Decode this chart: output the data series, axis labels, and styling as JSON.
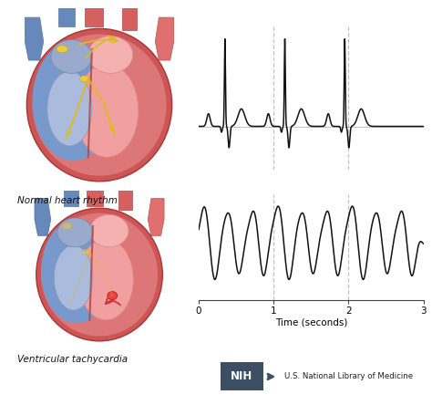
{
  "fig_width": 4.74,
  "fig_height": 4.44,
  "dpi": 100,
  "bg_color": "#ffffff",
  "ecg_color": "#111111",
  "dashed_color": "#bbbbbb",
  "axis_color": "#444444",
  "label_text": "Time (seconds)",
  "label_fontsize": 7.5,
  "tick_fontsize": 7.5,
  "x_ticks": [
    0,
    1,
    2,
    3
  ],
  "x_lim": [
    0,
    3
  ],
  "dashed_lines": [
    1,
    2
  ],
  "normal_label": "Normal heart rhythm",
  "tachy_label": "Ventricular tachycardia",
  "nih_label": "U.S. National Library of Medicine",
  "nih_bg": "#3d4f63",
  "border_color": "#888888"
}
